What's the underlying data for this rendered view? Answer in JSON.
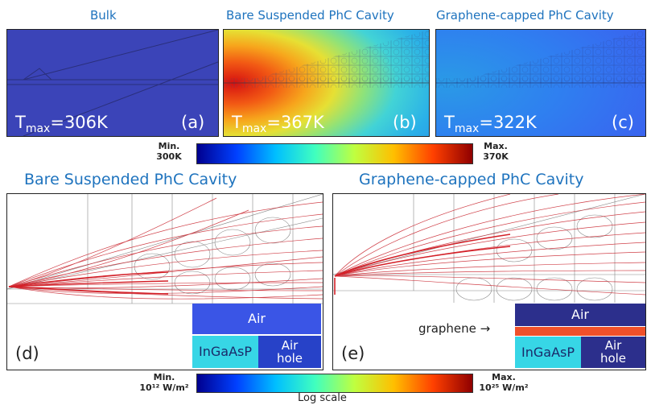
{
  "top": {
    "panels": [
      {
        "title": "Bulk",
        "tmax_prefix": "T",
        "tmax_sub": "max",
        "tmax_value": "=306K",
        "label": "(a)"
      },
      {
        "title": "Bare Suspended PhC Cavity",
        "tmax_prefix": "T",
        "tmax_sub": "max",
        "tmax_value": "=367K",
        "label": "(b)"
      },
      {
        "title": "Graphene-capped PhC Cavity",
        "tmax_prefix": "T",
        "tmax_sub": "max",
        "tmax_value": "=322K",
        "label": "(c)"
      }
    ],
    "colorbar": {
      "min_label": "Min.",
      "min_value": "300K",
      "max_label": "Max.",
      "max_value": "370K"
    }
  },
  "bottom": {
    "panels": [
      {
        "title": "Bare Suspended PhC Cavity",
        "label": "(d)",
        "legend": {
          "air": "Air",
          "ingaasp": "InGaAsP",
          "air_hole": "Air\nhole"
        }
      },
      {
        "title": "Graphene-capped PhC Cavity",
        "label": "(e)",
        "legend": {
          "air": "Air",
          "graphene": "graphene →",
          "ingaasp": "InGaAsP",
          "air_hole": "Air\nhole"
        }
      }
    ],
    "colorbar": {
      "min_label": "Min.",
      "min_value": "10¹² W/m²",
      "max_label": "Max.",
      "max_value": "10²⁵ W/m²",
      "scale_label": "Log scale"
    }
  },
  "colors": {
    "title": "#1e73be",
    "bulk": "#3b44b8",
    "air": "#3a55e6",
    "ingaasp": "#37d6e6",
    "air_hole_d": "#2742c8",
    "air_dark": "#2c2f8c",
    "graphene": "#f0502a",
    "flux": "#c8202a"
  }
}
